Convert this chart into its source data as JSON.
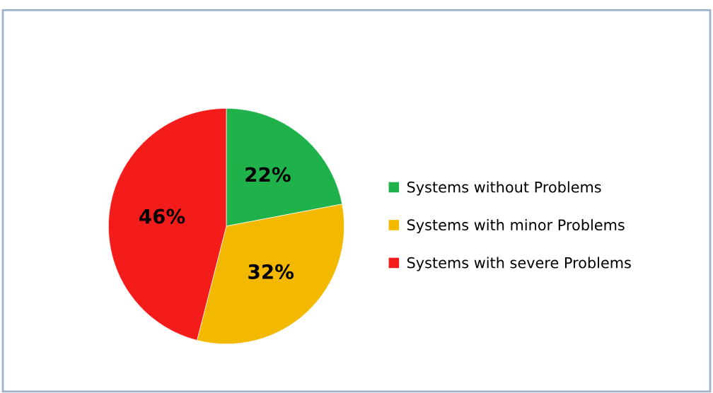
{
  "chart_data": {
    "type": "pie",
    "categories": [
      "Systems without Problems",
      "Systems with minor Problems",
      "Systems with severe Problems"
    ],
    "values": [
      22,
      32,
      46
    ],
    "colors": [
      "#1fb14a",
      "#f3b800",
      "#f41b1b"
    ],
    "value_labels": [
      "22%",
      "32%",
      "46%"
    ],
    "legend": "right"
  }
}
